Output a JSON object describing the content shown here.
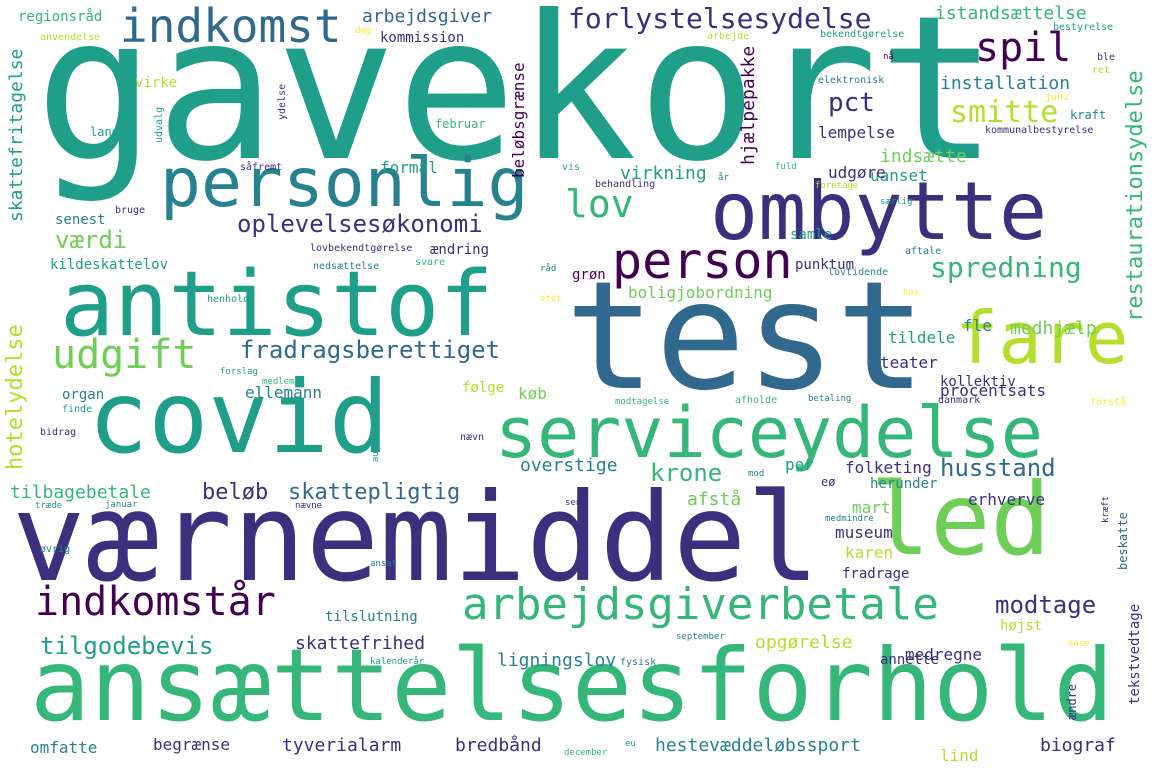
{
  "palette": {
    "background": "#ffffff",
    "dark_purple": "#440154",
    "indigo": "#3b2f7e",
    "blue": "#31688e",
    "teal": "#26828e",
    "green_teal": "#1f9e89",
    "green": "#35b779",
    "light_green": "#6ece58",
    "lime": "#b5de2b",
    "yellow": "#fde725"
  },
  "words": [
    {
      "id": "gavekort",
      "text": "gavekort"
    },
    {
      "id": "test",
      "text": "test"
    },
    {
      "id": "vaernemiddel",
      "text": "værnemiddel"
    },
    {
      "id": "ansaettelsesforhold",
      "text": "ansættelsesforhold"
    },
    {
      "id": "covid",
      "text": "covid"
    },
    {
      "id": "antistof",
      "text": "antistof"
    },
    {
      "id": "ombytte",
      "text": "ombytte"
    },
    {
      "id": "led",
      "text": "led"
    },
    {
      "id": "personlig",
      "text": "personlig"
    },
    {
      "id": "serviceydelse",
      "text": "serviceydelse"
    },
    {
      "id": "fare",
      "text": "fare"
    },
    {
      "id": "indkomst",
      "text": "indkomst"
    },
    {
      "id": "person",
      "text": "person"
    },
    {
      "id": "arbejdsgiverbetale",
      "text": "arbejdsgiverbetale"
    },
    {
      "id": "indkomstaar",
      "text": "indkomstår"
    },
    {
      "id": "udgift",
      "text": "udgift"
    },
    {
      "id": "spil",
      "text": "spil"
    },
    {
      "id": "lov",
      "text": "lov"
    },
    {
      "id": "forlystelsesydelse",
      "text": "forlystelsesydelse"
    },
    {
      "id": "smitte",
      "text": "smitte"
    },
    {
      "id": "oplevelsesoekonomi",
      "text": "oplevelsesøkonomi"
    },
    {
      "id": "fradragsberettiget",
      "text": "fradragsberettiget"
    },
    {
      "id": "spredning",
      "text": "spredning"
    },
    {
      "id": "restaurationsydelse",
      "text": "restaurationsydelse"
    },
    {
      "id": "tilgodebevis",
      "text": "tilgodebevis"
    },
    {
      "id": "vaerdi",
      "text": "værdi"
    },
    {
      "id": "hotelydelse",
      "text": "hotelydelse"
    },
    {
      "id": "modtage",
      "text": "modtage"
    },
    {
      "id": "husstand",
      "text": "husstand"
    },
    {
      "id": "krone",
      "text": "krone"
    },
    {
      "id": "beloeb",
      "text": "beløb"
    },
    {
      "id": "skattepligtig",
      "text": "skattepligtig"
    },
    {
      "id": "pct",
      "text": "pct"
    },
    {
      "id": "arbejdsgiver",
      "text": "arbejdsgiver"
    },
    {
      "id": "istandsaettelse",
      "text": "istandsættelse"
    },
    {
      "id": "installation",
      "text": "installation"
    },
    {
      "id": "regionsraad",
      "text": "regionsråd"
    },
    {
      "id": "kommission",
      "text": "kommission"
    },
    {
      "id": "anvendelse",
      "text": "anvendelse"
    },
    {
      "id": "virke",
      "text": "virke"
    },
    {
      "id": "skattefritagelse",
      "text": "skattefritagelse"
    },
    {
      "id": "dag",
      "text": "dag"
    },
    {
      "id": "beloebsgraense",
      "text": "beløbsgrænse"
    },
    {
      "id": "arbejde",
      "text": "arbejde"
    },
    {
      "id": "hjaelpepakke",
      "text": "hjælpepakke"
    },
    {
      "id": "bekendtgoerelse",
      "text": "bekendtgørelse"
    },
    {
      "id": "bestyrelse",
      "text": "bestyrelse"
    },
    {
      "id": "ble",
      "text": "ble"
    },
    {
      "id": "ret",
      "text": "ret"
    },
    {
      "id": "naa",
      "text": "nå"
    },
    {
      "id": "elektronisk",
      "text": "elektronisk"
    },
    {
      "id": "juni",
      "text": "juni"
    },
    {
      "id": "kraft",
      "text": "kraft"
    },
    {
      "id": "kommunalbestyrelse",
      "text": "kommunalbestyrelse"
    },
    {
      "id": "lempelse",
      "text": "lempelse"
    },
    {
      "id": "februar",
      "text": "februar"
    },
    {
      "id": "land",
      "text": "land"
    },
    {
      "id": "udvalg",
      "text": "udvalg"
    },
    {
      "id": "ydelse",
      "text": "ydelse"
    },
    {
      "id": "saafremt",
      "text": "såfremt"
    },
    {
      "id": "formaal",
      "text": "formål"
    },
    {
      "id": "indsaette",
      "text": "indsætte"
    },
    {
      "id": "uanset",
      "text": "uanset"
    },
    {
      "id": "virkning",
      "text": "virkning"
    },
    {
      "id": "udgoere",
      "text": "udgøre"
    },
    {
      "id": "senest",
      "text": "senest"
    },
    {
      "id": "bruge",
      "text": "bruge"
    },
    {
      "id": "vis",
      "text": "vis"
    },
    {
      "id": "behandling",
      "text": "behandling"
    },
    {
      "id": "aar",
      "text": "år"
    },
    {
      "id": "fuld",
      "text": "fuld"
    },
    {
      "id": "foretage",
      "text": "foretage"
    },
    {
      "id": "saerlig",
      "text": "særlig"
    },
    {
      "id": "samle",
      "text": "samle"
    },
    {
      "id": "aendring",
      "text": "ændring"
    },
    {
      "id": "lovbekendtgoerelse",
      "text": "lovbekendtgørelse"
    },
    {
      "id": "kildeskattelov",
      "text": "kildeskattelov"
    },
    {
      "id": "nedsaettelse",
      "text": "nedsættelse"
    },
    {
      "id": "svare",
      "text": "svare"
    },
    {
      "id": "raad",
      "text": "råd"
    },
    {
      "id": "groen",
      "text": "grøn"
    },
    {
      "id": "punktum",
      "text": "punktum"
    },
    {
      "id": "aftale",
      "text": "aftale"
    },
    {
      "id": "lovtidende",
      "text": "lovtidende"
    },
    {
      "id": "boligjobordning",
      "text": "boligjobordning"
    },
    {
      "id": "stet",
      "text": "stet"
    },
    {
      "id": "hos",
      "text": "hos"
    },
    {
      "id": "henhold",
      "text": "henhold"
    },
    {
      "id": "fle",
      "text": "fle"
    },
    {
      "id": "medhjaelp",
      "text": "medhjælp"
    },
    {
      "id": "tildele",
      "text": "tildele"
    },
    {
      "id": "teater",
      "text": "teater"
    },
    {
      "id": "ellemann",
      "text": "ellemann"
    },
    {
      "id": "organ",
      "text": "organ"
    },
    {
      "id": "forslag",
      "text": "forslag"
    },
    {
      "id": "medlem",
      "text": "medlem"
    },
    {
      "id": "foelge",
      "text": "følge"
    },
    {
      "id": "koeb",
      "text": "køb"
    },
    {
      "id": "kollektiv",
      "text": "kollektiv"
    },
    {
      "id": "procentsats",
      "text": "procentsats"
    },
    {
      "id": "finde",
      "text": "finde"
    },
    {
      "id": "modtagelse",
      "text": "modtagelse"
    },
    {
      "id": "afholde",
      "text": "afholde"
    },
    {
      "id": "betaling",
      "text": "betaling"
    },
    {
      "id": "danmark",
      "text": "danmark"
    },
    {
      "id": "forstaa",
      "text": "forstå"
    },
    {
      "id": "bidrag",
      "text": "bidrag"
    },
    {
      "id": "august",
      "text": "august"
    },
    {
      "id": "tekstvedtage",
      "text": "tekstvedtage"
    },
    {
      "id": "naevn",
      "text": "nævn"
    },
    {
      "id": "overstige",
      "text": "overstige"
    },
    {
      "id": "per",
      "text": "per"
    },
    {
      "id": "mod",
      "text": "mod"
    },
    {
      "id": "folketing",
      "text": "folketing"
    },
    {
      "id": "eo",
      "text": "eø"
    },
    {
      "id": "herunder",
      "text": "herunder"
    },
    {
      "id": "tilbagebetale",
      "text": "tilbagebetale"
    },
    {
      "id": "afstaa",
      "text": "afstå"
    },
    {
      "id": "erhverve",
      "text": "erhverve"
    },
    {
      "id": "traede",
      "text": "træde"
    },
    {
      "id": "januar",
      "text": "januar"
    },
    {
      "id": "naevne",
      "text": "nævne"
    },
    {
      "id": "sen",
      "text": "sen"
    },
    {
      "id": "marts",
      "text": "marts"
    },
    {
      "id": "museum",
      "text": "museum"
    },
    {
      "id": "kraeft",
      "text": "kræft"
    },
    {
      "id": "medmindre",
      "text": "medmindre"
    },
    {
      "id": "beskatte",
      "text": "beskatte"
    },
    {
      "id": "oevrig",
      "text": "øvrig"
    },
    {
      "id": "ansat",
      "text": "ansat"
    },
    {
      "id": "karen",
      "text": "karen"
    },
    {
      "id": "fradrage",
      "text": "fradrage"
    },
    {
      "id": "tilslutning",
      "text": "tilslutning"
    },
    {
      "id": "skattefrihed",
      "text": "skattefrihed"
    },
    {
      "id": "opgoerelse",
      "text": "opgørelse"
    },
    {
      "id": "hoejst",
      "text": "højst"
    },
    {
      "id": "september",
      "text": "september"
    },
    {
      "id": "anse",
      "text": "anse"
    },
    {
      "id": "kalenderaar",
      "text": "kalenderår"
    },
    {
      "id": "fysisk",
      "text": "fysisk"
    },
    {
      "id": "ligningslov",
      "text": "ligningslov"
    },
    {
      "id": "medregne",
      "text": "medregne"
    },
    {
      "id": "annette",
      "text": "annette"
    },
    {
      "id": "aendre",
      "text": "ændre"
    },
    {
      "id": "omfatte",
      "text": "omfatte"
    },
    {
      "id": "begraense",
      "text": "begrænse"
    },
    {
      "id": "tyverialarm",
      "text": "tyverialarm"
    },
    {
      "id": "bredbaand",
      "text": "bredbånd"
    },
    {
      "id": "december",
      "text": "december"
    },
    {
      "id": "eu",
      "text": "eu"
    },
    {
      "id": "hestevaeddeloebssport",
      "text": "hestevæddeløbssport"
    },
    {
      "id": "lind",
      "text": "lind"
    },
    {
      "id": "biograf",
      "text": "biograf"
    }
  ]
}
